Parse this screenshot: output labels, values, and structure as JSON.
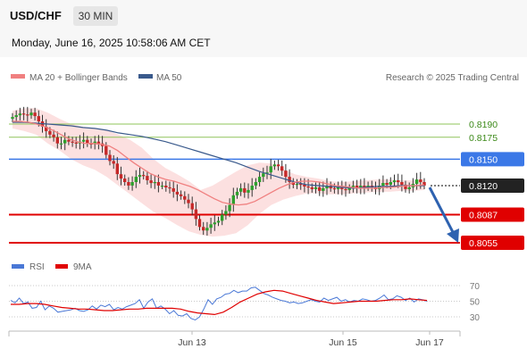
{
  "header": {
    "symbol": "USD/CHF",
    "timeframe": "30 MIN",
    "timestamp": "Monday, June 16, 2025 10:58:06 AM CET"
  },
  "legend": {
    "ma20": "MA 20 + Bollinger Bands",
    "ma50": "MA 50",
    "credit": "Research © 2025 Trading Central"
  },
  "rsi_legend": {
    "rsi": "RSI",
    "ma": "9MA"
  },
  "colors": {
    "bull": "#2ca02c",
    "bear": "#c62828",
    "ma20": "#f08080",
    "ma50": "#3a5a8c",
    "bollinger_fill": "#fbd5d5",
    "green_level": "#8fc45a",
    "blue_level": "#3b78e7",
    "red_level": "#e00000",
    "arrow": "#2e62b0",
    "rsi_line": "#4a78d6",
    "rsi_ma": "#e00000"
  },
  "chart_data": [
    {
      "type": "candlestick",
      "title": "USD/CHF 30 MIN",
      "ylim": [
        0.8045,
        0.8215
      ],
      "x_labels": [
        "Jun 13",
        "Jun 15",
        "Jun 17"
      ],
      "levels": [
        {
          "value": 0.819,
          "label": "0.8190",
          "kind": "resistance-minor",
          "color": "#8fc45a"
        },
        {
          "value": 0.8175,
          "label": "0.8175",
          "kind": "resistance-minor",
          "color": "#8fc45a"
        },
        {
          "value": 0.815,
          "label": "0.8150",
          "kind": "pivot",
          "color": "#3b78e7"
        },
        {
          "value": 0.812,
          "label": "0.8120",
          "kind": "last-price",
          "color": "#222222"
        },
        {
          "value": 0.8087,
          "label": "0.8087",
          "kind": "support",
          "color": "#e00000"
        },
        {
          "value": 0.8055,
          "label": "0.8055",
          "kind": "support",
          "color": "#e00000"
        }
      ],
      "closes": [
        0.8198,
        0.82,
        0.8202,
        0.8201,
        0.82,
        0.8203,
        0.8199,
        0.8193,
        0.8187,
        0.8182,
        0.8178,
        0.8175,
        0.8168,
        0.8168,
        0.8172,
        0.817,
        0.8169,
        0.8168,
        0.817,
        0.8172,
        0.8168,
        0.8167,
        0.817,
        0.8168,
        0.8165,
        0.8155,
        0.8148,
        0.8145,
        0.8133,
        0.8128,
        0.8124,
        0.812,
        0.8124,
        0.813,
        0.8132,
        0.8131,
        0.8126,
        0.8123,
        0.8124,
        0.812,
        0.812,
        0.8118,
        0.8117,
        0.8113,
        0.811,
        0.8108,
        0.8104,
        0.81,
        0.8093,
        0.8082,
        0.8073,
        0.8069,
        0.8072,
        0.8076,
        0.8078,
        0.808,
        0.8087,
        0.8091,
        0.8098,
        0.8109,
        0.8113,
        0.8117,
        0.8112,
        0.8115,
        0.812,
        0.8124,
        0.813,
        0.8134,
        0.8135,
        0.8142,
        0.8144,
        0.8142,
        0.8137,
        0.813,
        0.8124,
        0.8121,
        0.8122,
        0.8121,
        0.8119,
        0.8118,
        0.8116,
        0.8118,
        0.8114,
        0.8117,
        0.812,
        0.8117,
        0.8116,
        0.8118,
        0.8116,
        0.8115,
        0.8117,
        0.812,
        0.8117,
        0.812,
        0.8118,
        0.812,
        0.8118,
        0.8116,
        0.812,
        0.8123,
        0.8121,
        0.8124,
        0.8126,
        0.8124,
        0.8121,
        0.8116,
        0.8118,
        0.8122,
        0.8127,
        0.8124,
        0.812
      ],
      "ma50": [
        0.8192,
        0.8192,
        0.8191,
        0.819,
        0.8189,
        0.8188,
        0.8186,
        0.8185,
        0.8183,
        0.818,
        0.8178,
        0.8176,
        0.8173,
        0.817,
        0.8166,
        0.8162,
        0.8158,
        0.8154,
        0.815,
        0.8146,
        0.8141,
        0.8136,
        0.8132,
        0.8128,
        0.8124,
        0.8121,
        0.812,
        0.8119,
        0.8118,
        0.8117,
        0.8118,
        0.8119,
        0.8119,
        0.812,
        0.812,
        0.812
      ],
      "ma20": [
        0.8193,
        0.8193,
        0.8192,
        0.819,
        0.8187,
        0.8183,
        0.8178,
        0.8173,
        0.817,
        0.8168,
        0.8168,
        0.8167,
        0.8165,
        0.816,
        0.8153,
        0.8146,
        0.814,
        0.8134,
        0.813,
        0.8127,
        0.8125,
        0.8122,
        0.8119,
        0.8115,
        0.811,
        0.8105,
        0.8101,
        0.8099,
        0.8098,
        0.8099,
        0.8102,
        0.8107,
        0.8112,
        0.8117,
        0.8121,
        0.8124,
        0.8125,
        0.8125,
        0.8124,
        0.8122,
        0.812,
        0.8119,
        0.8118,
        0.8117,
        0.8117,
        0.8117,
        0.8118,
        0.8118,
        0.8119,
        0.812,
        0.812,
        0.8121
      ],
      "bb_upper": [
        0.8205,
        0.8208,
        0.8208,
        0.8203,
        0.8196,
        0.819,
        0.8187,
        0.8185,
        0.8183,
        0.8178,
        0.8172,
        0.8163,
        0.815,
        0.814,
        0.8133,
        0.8125,
        0.8115,
        0.812,
        0.8128,
        0.8136,
        0.8143,
        0.8146,
        0.8145,
        0.8139,
        0.8133,
        0.813,
        0.8128,
        0.8125,
        0.8124,
        0.8125,
        0.8126,
        0.8127,
        0.8127,
        0.8126,
        0.8126,
        0.8127
      ],
      "bb_lower": [
        0.8185,
        0.8182,
        0.8178,
        0.8168,
        0.816,
        0.815,
        0.8143,
        0.8138,
        0.813,
        0.812,
        0.811,
        0.81,
        0.809,
        0.8083,
        0.8075,
        0.8068,
        0.8064,
        0.8062,
        0.8063,
        0.8066,
        0.8075,
        0.8088,
        0.8098,
        0.8104,
        0.8108,
        0.8111,
        0.8111,
        0.811,
        0.811,
        0.8111,
        0.8112,
        0.8113,
        0.8113,
        0.8114,
        0.8114,
        0.8115
      ]
    },
    {
      "type": "line",
      "title": "RSI",
      "ylim": [
        20,
        80
      ],
      "y_ticks": [
        70,
        50,
        30
      ],
      "series": [
        {
          "name": "RSI",
          "values": [
            51,
            48,
            54,
            47,
            49,
            41,
            42,
            50,
            39,
            44,
            41,
            36,
            37,
            38,
            39,
            41,
            38,
            37,
            39,
            44,
            40,
            45,
            43,
            46,
            39,
            42,
            40,
            43,
            45,
            47,
            52,
            41,
            49,
            53,
            41,
            44,
            40,
            34,
            38,
            32,
            31,
            34,
            28,
            26,
            30,
            40,
            52,
            46,
            53,
            55,
            59,
            60,
            64,
            61,
            63,
            63,
            67,
            68,
            64,
            60,
            58,
            55,
            53,
            51,
            50,
            48,
            49,
            47,
            48,
            50,
            52,
            50,
            49,
            54,
            51,
            53,
            55,
            50,
            52,
            49,
            51,
            50,
            53,
            52,
            50,
            51,
            54,
            58,
            52,
            53,
            57,
            55,
            51,
            54,
            49,
            53,
            52,
            50
          ]
        },
        {
          "name": "9MA",
          "values": [
            46,
            46,
            47,
            47,
            46,
            44,
            42,
            41,
            40,
            40,
            39,
            38,
            38,
            39,
            40,
            40,
            41,
            41,
            41,
            41,
            40,
            37,
            35,
            34,
            33,
            36,
            42,
            49,
            54,
            59,
            62,
            64,
            63,
            60,
            57,
            54,
            51,
            49,
            47,
            48,
            49,
            50,
            50,
            50,
            51,
            52,
            52,
            53,
            52,
            51
          ]
        }
      ]
    }
  ]
}
